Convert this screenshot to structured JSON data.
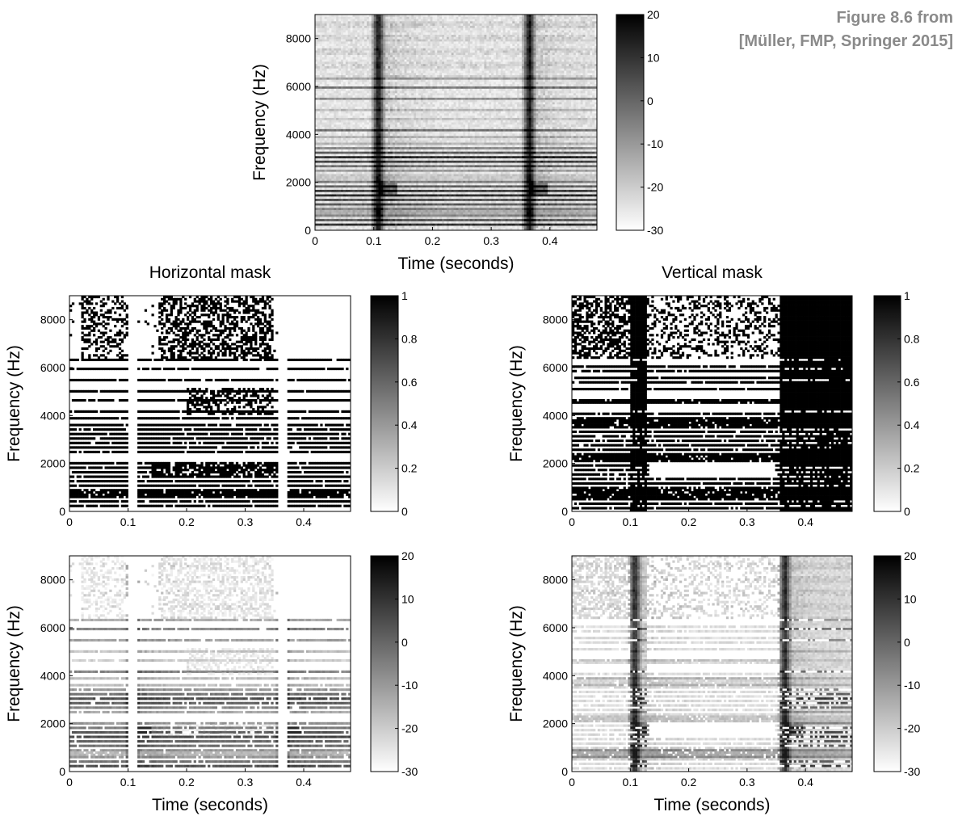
{
  "caption": {
    "line1": "Figure 8.6 from",
    "line2": "[Müller, FMP, Springer 2015]"
  },
  "chart_data": [
    {
      "id": "original",
      "type": "heatmap",
      "title": "",
      "xlabel": "Time (seconds)",
      "ylabel": "Frequency (Hz)",
      "xlim": [
        0,
        0.48
      ],
      "ylim": [
        0,
        9000
      ],
      "xticks": [
        0,
        0.1,
        0.2,
        0.3,
        0.4
      ],
      "yticks": [
        0,
        2000,
        4000,
        6000,
        8000
      ],
      "colorbar": {
        "range": [
          -30,
          20
        ],
        "ticks": [
          20,
          10,
          0,
          -10,
          -20,
          -30
        ]
      },
      "content": "spectrogram (dB)",
      "vertical_events_s": [
        0.108,
        0.365
      ],
      "harmonic_lines_hz": [
        250,
        450,
        650,
        850,
        1050,
        1250,
        1450,
        1650,
        1850,
        2050,
        2250,
        2450,
        2650,
        2850,
        3050,
        3250,
        3450,
        3650,
        3850,
        4150,
        4600,
        5050,
        5500,
        5950,
        6350
      ],
      "grid": false
    },
    {
      "id": "horizontal-mask",
      "type": "heatmap",
      "title": "Horizontal mask",
      "xlabel": "",
      "ylabel": "Frequency (Hz)",
      "xlim": [
        0,
        0.48
      ],
      "ylim": [
        0,
        9000
      ],
      "xticks": [
        0,
        0.1,
        0.2,
        0.3,
        0.4
      ],
      "yticks": [
        0,
        2000,
        4000,
        6000,
        8000
      ],
      "colorbar": {
        "range": [
          0,
          1
        ],
        "ticks": [
          1,
          0.8,
          0.6,
          0.4,
          0.2,
          0
        ]
      },
      "content": "binary mask",
      "gaps_s": [
        [
          0.1,
          0.115
        ],
        [
          0.355,
          0.37
        ]
      ],
      "grid": false
    },
    {
      "id": "vertical-mask",
      "type": "heatmap",
      "title": "Vertical mask",
      "xlabel": "",
      "ylabel": "Frequency (Hz)",
      "xlim": [
        0,
        0.48
      ],
      "ylim": [
        0,
        9000
      ],
      "xticks": [
        0,
        0.1,
        0.2,
        0.3,
        0.4
      ],
      "yticks": [
        0,
        2000,
        4000,
        6000,
        8000
      ],
      "colorbar": {
        "range": [
          0,
          1
        ],
        "ticks": [
          1,
          0.8,
          0.6,
          0.4,
          0.2,
          0
        ]
      },
      "content": "binary mask",
      "solid_bands_s": [
        [
          0.1,
          0.128
        ],
        [
          0.355,
          0.48
        ]
      ],
      "grid": false
    },
    {
      "id": "horizontal-component",
      "type": "heatmap",
      "title": "",
      "xlabel": "Time (seconds)",
      "ylabel": "Frequency (Hz)",
      "xlim": [
        0,
        0.48
      ],
      "ylim": [
        0,
        9000
      ],
      "xticks": [
        0,
        0.1,
        0.2,
        0.3,
        0.4
      ],
      "yticks": [
        0,
        2000,
        4000,
        6000,
        8000
      ],
      "colorbar": {
        "range": [
          -30,
          20
        ],
        "ticks": [
          20,
          10,
          0,
          -10,
          -20,
          -30
        ]
      },
      "content": "masked spectrogram (dB)",
      "grid": false
    },
    {
      "id": "vertical-component",
      "type": "heatmap",
      "title": "",
      "xlabel": "Time (seconds)",
      "ylabel": "Frequency (Hz)",
      "xlim": [
        0,
        0.48
      ],
      "ylim": [
        0,
        9000
      ],
      "xticks": [
        0,
        0.1,
        0.2,
        0.3,
        0.4
      ],
      "yticks": [
        0,
        2000,
        4000,
        6000,
        8000
      ],
      "colorbar": {
        "range": [
          -30,
          20
        ],
        "ticks": [
          20,
          10,
          0,
          -10,
          -20,
          -30
        ]
      },
      "content": "masked spectrogram (dB)",
      "grid": false
    }
  ]
}
